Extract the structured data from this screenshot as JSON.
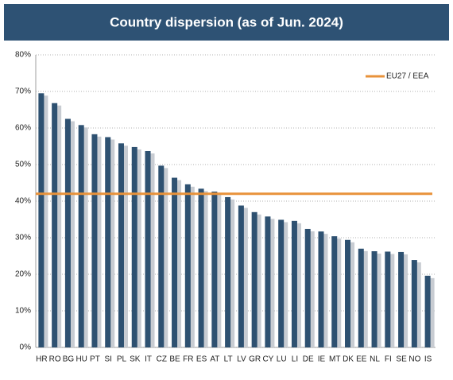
{
  "chart_data": {
    "type": "bar",
    "title": "Country dispersion (as of Jun. 2024)",
    "categories": [
      "HR",
      "RO",
      "BG",
      "HU",
      "PT",
      "SI",
      "PL",
      "SK",
      "IT",
      "CZ",
      "BE",
      "FR",
      "ES",
      "AT",
      "LT",
      "LV",
      "GR",
      "CY",
      "LU",
      "LI",
      "DE",
      "IE",
      "MT",
      "DK",
      "EE",
      "NL",
      "FI",
      "SE",
      "NO",
      "IS"
    ],
    "values": [
      69.5,
      66.8,
      62.5,
      60.8,
      58.3,
      57.5,
      55.8,
      54.8,
      53.7,
      49.7,
      46.4,
      44.6,
      43.4,
      42.6,
      41.1,
      38.8,
      37.0,
      35.8,
      34.9,
      34.6,
      32.4,
      31.7,
      30.4,
      29.4,
      27.0,
      26.3,
      26.2,
      26.1,
      23.9,
      19.6
    ],
    "color": "#2e5171",
    "reference_line": {
      "name": "EU27 / EEA",
      "value": 42,
      "color": "#e8923a"
    },
    "ylim": [
      0,
      80
    ],
    "yticks": [
      {
        "value": 0,
        "label": "0%"
      },
      {
        "value": 10,
        "label": "10%"
      },
      {
        "value": 20,
        "label": "20%"
      },
      {
        "value": 30,
        "label": "30%"
      },
      {
        "value": 40,
        "label": "40%"
      },
      {
        "value": 50,
        "label": "50%"
      },
      {
        "value": 60,
        "label": "60%"
      },
      {
        "value": 70,
        "label": "70%"
      },
      {
        "value": 80,
        "label": "80%"
      }
    ],
    "grid": true,
    "legend": "top-right"
  }
}
